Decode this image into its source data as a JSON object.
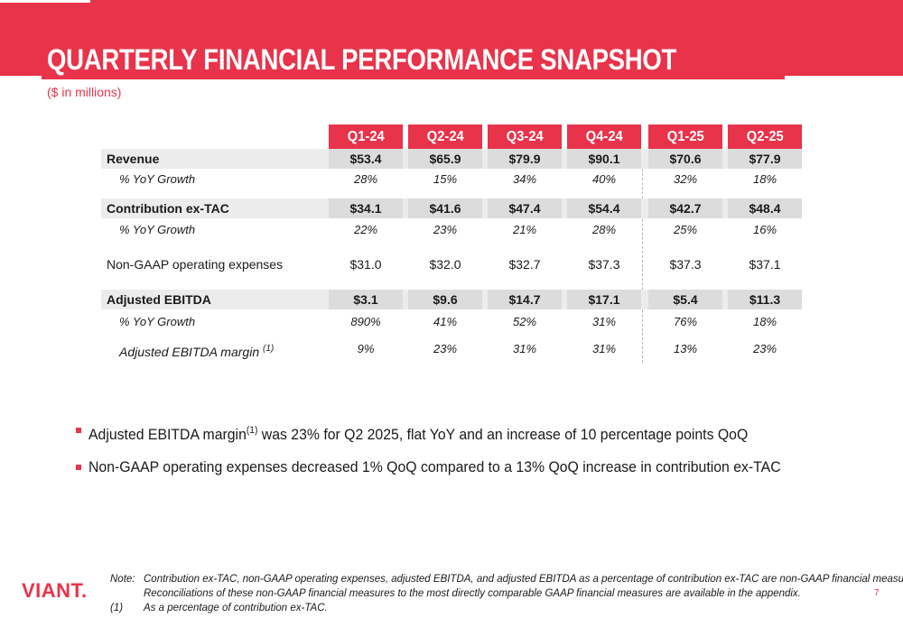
{
  "header": {
    "title": "QUARTERLY FINANCIAL PERFORMANCE SNAPSHOT",
    "subtitle": "($ in millions)"
  },
  "table": {
    "quarters": [
      "Q1-24",
      "Q2-24",
      "Q3-24",
      "Q4-24",
      "Q1-25",
      "Q2-25"
    ],
    "revenue": {
      "label": "Revenue",
      "values": [
        "$53.4",
        "$65.9",
        "$79.9",
        "$90.1",
        "$70.6",
        "$77.9"
      ]
    },
    "revenue_growth": {
      "label": "% YoY Growth",
      "values": [
        "28%",
        "15%",
        "34%",
        "40%",
        "32%",
        "18%"
      ]
    },
    "contribution": {
      "label": "Contribution ex-TAC",
      "values": [
        "$34.1",
        "$41.6",
        "$47.4",
        "$54.4",
        "$42.7",
        "$48.4"
      ]
    },
    "contribution_growth": {
      "label": "% YoY Growth",
      "values": [
        "22%",
        "23%",
        "21%",
        "28%",
        "25%",
        "16%"
      ]
    },
    "opex": {
      "label": "Non-GAAP operating expenses",
      "values": [
        "$31.0",
        "$32.0",
        "$32.7",
        "$37.3",
        "$37.3",
        "$37.1"
      ]
    },
    "ebitda": {
      "label": "Adjusted EBITDA",
      "values": [
        "$3.1",
        "$9.6",
        "$14.7",
        "$17.1",
        "$5.4",
        "$11.3"
      ]
    },
    "ebitda_growth": {
      "label": "% YoY Growth",
      "values": [
        "890%",
        "41%",
        "52%",
        "31%",
        "76%",
        "18%"
      ]
    },
    "ebitda_margin": {
      "label": "Adjusted EBITDA margin",
      "footnote_ref": "(1)",
      "values": [
        "9%",
        "23%",
        "31%",
        "31%",
        "13%",
        "23%"
      ]
    }
  },
  "bullets": [
    {
      "pre": "Adjusted EBITDA margin",
      "sup": "(1)",
      "post": " was 23% for Q2 2025, flat YoY and an increase of 10 percentage points QoQ"
    },
    {
      "pre": "Non-GAAP operating expenses decreased 1% QoQ compared to a 13% QoQ increase in contribution ex-TAC",
      "sup": "",
      "post": ""
    }
  ],
  "footer": {
    "logo": "VIANT.",
    "note_key": "Note:",
    "note_line1": "Contribution ex-TAC, non-GAAP operating expenses, adjusted EBITDA, and adjusted EBITDA as a percentage of contribution ex-TAC are non-GAAP financial measures.",
    "note_line2": "Reconciliations of these non-GAAP financial measures to the most directly comparable GAAP financial measures are available in the appendix.",
    "fn_key": "(1)",
    "fn_text": "As a percentage of contribution ex-TAC.",
    "page_number": "7"
  },
  "colors": {
    "brand_red": "#e8334a",
    "row_shade": "#ececec",
    "cell_shade": "#dcdcdc"
  }
}
